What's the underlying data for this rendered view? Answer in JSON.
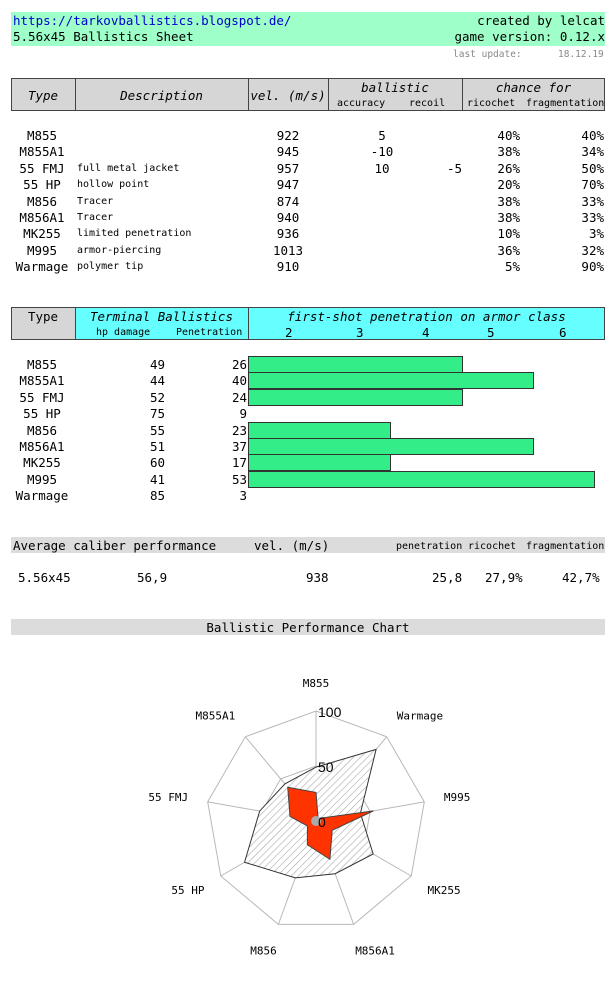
{
  "header": {
    "url": "https://tarkovballistics.blogspot.de/",
    "title": "5.56x45 Ballistics Sheet",
    "credit": "created by lelcat",
    "version": "game version: 0.12.x",
    "last_update_label": "last update:",
    "last_update_date": "18.12.19"
  },
  "ballistics_table": {
    "col_type": "Type",
    "col_desc": "Description",
    "col_vel": "vel. (m/s)",
    "grp_ballistic": "ballistic",
    "col_accuracy": "accuracy",
    "col_recoil": "recoil",
    "grp_chance": "chance for",
    "col_ricochet": "ricochet",
    "col_frag": "fragmentation",
    "rows": [
      {
        "type": "M855",
        "desc": "",
        "vel": "922",
        "acc": "5",
        "recoil": "",
        "ric": "40%",
        "frag": "40%"
      },
      {
        "type": "M855A1",
        "desc": "",
        "vel": "945",
        "acc": "-10",
        "recoil": "",
        "ric": "38%",
        "frag": "34%"
      },
      {
        "type": "55 FMJ",
        "desc": "full metal jacket",
        "vel": "957",
        "acc": "10",
        "recoil": "-5",
        "ric": "26%",
        "frag": "50%"
      },
      {
        "type": "55 HP",
        "desc": "hollow point",
        "vel": "947",
        "acc": "",
        "recoil": "",
        "ric": "20%",
        "frag": "70%"
      },
      {
        "type": "M856",
        "desc": "Tracer",
        "vel": "874",
        "acc": "",
        "recoil": "",
        "ric": "38%",
        "frag": "33%"
      },
      {
        "type": "M856A1",
        "desc": "Tracer",
        "vel": "940",
        "acc": "",
        "recoil": "",
        "ric": "38%",
        "frag": "33%"
      },
      {
        "type": "MK255",
        "desc": "limited penetration",
        "vel": "936",
        "acc": "",
        "recoil": "",
        "ric": "10%",
        "frag": "3%"
      },
      {
        "type": "M995",
        "desc": "armor-piercing",
        "vel": "1013",
        "acc": "",
        "recoil": "",
        "ric": "36%",
        "frag": "32%"
      },
      {
        "type": "Warmage",
        "desc": "polymer tip",
        "vel": "910",
        "acc": "",
        "recoil": "",
        "ric": "5%",
        "frag": "90%"
      }
    ]
  },
  "terminal_table": {
    "col_type": "Type",
    "grp_terminal": "Terminal Ballistics",
    "col_damage": "hp damage",
    "col_pen": "Penetration",
    "grp_first_shot": "first-shot penetration on armor class",
    "armor_classes": [
      "2",
      "3",
      "4",
      "5",
      "6"
    ],
    "rows": [
      {
        "type": "M855",
        "damage": "49",
        "pen": "26",
        "armor_reach": 3.0
      },
      {
        "type": "M855A1",
        "damage": "44",
        "pen": "40",
        "armor_reach": 4.0
      },
      {
        "type": "55 FMJ",
        "damage": "52",
        "pen": "24",
        "armor_reach": 3.0
      },
      {
        "type": "55 HP",
        "damage": "75",
        "pen": "9",
        "armor_reach": 0
      },
      {
        "type": "M856",
        "damage": "55",
        "pen": "23",
        "armor_reach": 2.0
      },
      {
        "type": "M856A1",
        "damage": "51",
        "pen": "37",
        "armor_reach": 4.0
      },
      {
        "type": "MK255",
        "damage": "60",
        "pen": "17",
        "armor_reach": 2.0
      },
      {
        "type": "M995",
        "damage": "41",
        "pen": "53",
        "armor_reach": 4.85
      },
      {
        "type": "Warmage",
        "damage": "85",
        "pen": "3",
        "armor_reach": 0
      }
    ]
  },
  "average": {
    "label": "Average caliber performance",
    "col_vel": "vel. (m/s)",
    "col_pen": "penetration",
    "col_ric": "ricochet",
    "col_frag": "fragmentation",
    "caliber": "5.56x45",
    "damage": "56,9",
    "vel": "938",
    "pen": "25,8",
    "ric": "27,9%",
    "frag": "42,7%"
  },
  "chart_title": "Ballistic Performance Chart",
  "chart_data": {
    "type": "radar",
    "title": "Ballistic Performance Chart",
    "categories": [
      "M855",
      "Warmage",
      "M995",
      "MK255",
      "M856A1",
      "M856",
      "55 HP",
      "55 FMJ",
      "M855A1"
    ],
    "axis_ticks": [
      "0",
      "50",
      "100"
    ],
    "range": [
      0,
      100
    ],
    "series": [
      {
        "values": [
          49,
          85,
          41,
          60,
          51,
          55,
          75,
          52,
          44
        ]
      },
      {
        "values": [
          26,
          3,
          53,
          17,
          37,
          23,
          9,
          24,
          40
        ]
      }
    ]
  },
  "colors": {
    "header_bg": "#9effc8",
    "terminal_bg": "#66ffff",
    "bar_fill": "#33ee88",
    "pen_fill": "#ff3300",
    "table_header_bg": "#d6d6d6"
  }
}
